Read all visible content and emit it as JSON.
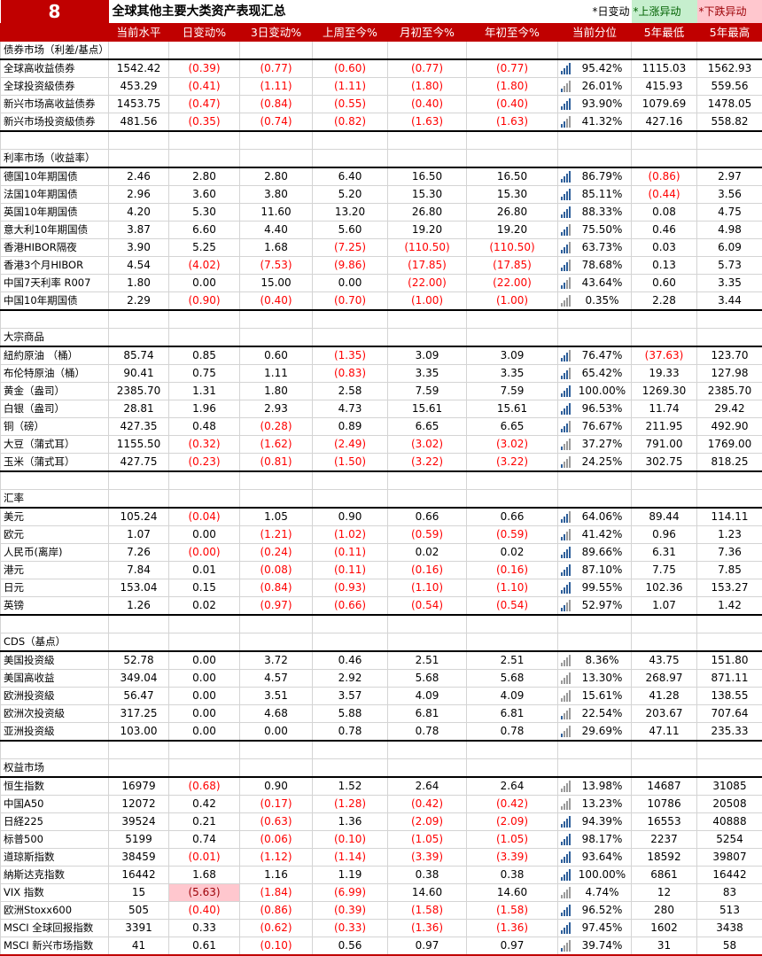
{
  "title": {
    "number": "8",
    "text": "全球其他主要大类资产表现汇总",
    "legend_label": "*日变动",
    "legend_up": "*上涨异动",
    "legend_down": "*下跌异动"
  },
  "colors": {
    "brand": "#c00000",
    "negative": "#ff0000",
    "up_bg": "#c6efce",
    "down_bg": "#ffc7ce",
    "bar_on": "#2e5f9a"
  },
  "columns": [
    "",
    "当前水平",
    "日变动%",
    "3日变动%",
    "上周至今%",
    "月初至今%",
    "年初至今%",
    "当前分位",
    "5年最低",
    "5年最高"
  ],
  "sections": [
    {
      "title": "债券市场（利差/基点）",
      "rows": [
        [
          "全球高收益债券",
          "1542.42",
          "(0.39)",
          "(0.77)",
          "(0.60)",
          "(0.77)",
          "(0.77)",
          "95.42%",
          "1115.03",
          "1562.93"
        ],
        [
          "全球投资級债券",
          "453.29",
          "(0.41)",
          "(1.11)",
          "(1.11)",
          "(1.80)",
          "(1.80)",
          "26.01%",
          "415.93",
          "559.56"
        ],
        [
          "新兴市场高收益债券",
          "1453.75",
          "(0.47)",
          "(0.84)",
          "(0.55)",
          "(0.40)",
          "(0.40)",
          "93.90%",
          "1079.69",
          "1478.05"
        ],
        [
          "新兴市场投资級债券",
          "481.56",
          "(0.35)",
          "(0.74)",
          "(0.82)",
          "(1.63)",
          "(1.63)",
          "41.32%",
          "427.16",
          "558.82"
        ]
      ]
    },
    {
      "title": "利率市场（收益率）",
      "rows": [
        [
          "德国10年期国债",
          "2.46",
          "2.80",
          "2.80",
          "6.40",
          "16.50",
          "16.50",
          "86.79%",
          "(0.86)",
          "2.97"
        ],
        [
          "法国10年期国债",
          "2.96",
          "3.60",
          "3.80",
          "5.20",
          "15.30",
          "15.30",
          "85.11%",
          "(0.44)",
          "3.56"
        ],
        [
          "英国10年期国债",
          "4.20",
          "5.30",
          "11.60",
          "13.20",
          "26.80",
          "26.80",
          "88.33%",
          "0.08",
          "4.75"
        ],
        [
          "意大利10年期国债",
          "3.87",
          "6.60",
          "4.40",
          "5.60",
          "19.20",
          "19.20",
          "75.50%",
          "0.46",
          "4.98"
        ],
        [
          "香港HIBOR隔夜",
          "3.90",
          "5.25",
          "1.68",
          "(7.25)",
          "(110.50)",
          "(110.50)",
          "63.73%",
          "0.03",
          "6.09"
        ],
        [
          "香港3个月HIBOR",
          "4.54",
          "(4.02)",
          "(7.53)",
          "(9.86)",
          "(17.85)",
          "(17.85)",
          "78.68%",
          "0.13",
          "5.73"
        ],
        [
          "中国7天利率 R007",
          "1.80",
          "0.00",
          "15.00",
          "0.00",
          "(22.00)",
          "(22.00)",
          "43.64%",
          "0.60",
          "3.35"
        ],
        [
          "中国10年期国债",
          "2.29",
          "(0.90)",
          "(0.40)",
          "(0.70)",
          "(1.00)",
          "(1.00)",
          "0.35%",
          "2.28",
          "3.44"
        ]
      ]
    },
    {
      "title": "大宗商品",
      "rows": [
        [
          "紐約原油 （桶）",
          "85.74",
          "0.85",
          "0.60",
          "(1.35)",
          "3.09",
          "3.09",
          "76.47%",
          "(37.63)",
          "123.70"
        ],
        [
          "布伦特原油（桶）",
          "90.41",
          "0.75",
          "1.11",
          "(0.83)",
          "3.35",
          "3.35",
          "65.42%",
          "19.33",
          "127.98"
        ],
        [
          "黄金（盎司）",
          "2385.70",
          "1.31",
          "1.80",
          "2.58",
          "7.59",
          "7.59",
          "100.00%",
          "1269.30",
          "2385.70"
        ],
        [
          "白银（盎司）",
          "28.81",
          "1.96",
          "2.93",
          "4.73",
          "15.61",
          "15.61",
          "96.53%",
          "11.74",
          "29.42"
        ],
        [
          "铜（磅）",
          "427.35",
          "0.48",
          "(0.28)",
          "0.89",
          "6.65",
          "6.65",
          "76.67%",
          "211.95",
          "492.90"
        ],
        [
          "大豆（蒲式耳）",
          "1155.50",
          "(0.32)",
          "(1.62)",
          "(2.49)",
          "(3.02)",
          "(3.02)",
          "37.27%",
          "791.00",
          "1769.00"
        ],
        [
          "玉米（蒲式耳）",
          "427.75",
          "(0.23)",
          "(0.81)",
          "(1.50)",
          "(3.22)",
          "(3.22)",
          "24.25%",
          "302.75",
          "818.25"
        ]
      ]
    },
    {
      "title": "汇率",
      "rows": [
        [
          "美元",
          "105.24",
          "(0.04)",
          "1.05",
          "0.90",
          "0.66",
          "0.66",
          "64.06%",
          "89.44",
          "114.11"
        ],
        [
          "欧元",
          "1.07",
          "0.00",
          "(1.21)",
          "(1.02)",
          "(0.59)",
          "(0.59)",
          "41.42%",
          "0.96",
          "1.23"
        ],
        [
          "人民币(离岸)",
          "7.26",
          "(0.00)",
          "(0.24)",
          "(0.11)",
          "0.02",
          "0.02",
          "89.66%",
          "6.31",
          "7.36"
        ],
        [
          "港元",
          "7.84",
          "0.01",
          "(0.08)",
          "(0.11)",
          "(0.16)",
          "(0.16)",
          "87.10%",
          "7.75",
          "7.85"
        ],
        [
          "日元",
          "153.04",
          "0.15",
          "(0.84)",
          "(0.93)",
          "(1.10)",
          "(1.10)",
          "99.55%",
          "102.36",
          "153.27"
        ],
        [
          "英镑",
          "1.26",
          "0.02",
          "(0.97)",
          "(0.66)",
          "(0.54)",
          "(0.54)",
          "52.97%",
          "1.07",
          "1.42"
        ]
      ]
    },
    {
      "title": "CDS（基点）",
      "rows": [
        [
          "美国投资級",
          "52.78",
          "0.00",
          "3.72",
          "0.46",
          "2.51",
          "2.51",
          "8.36%",
          "43.75",
          "151.80"
        ],
        [
          "美国高收益",
          "349.04",
          "0.00",
          "4.57",
          "2.92",
          "5.68",
          "5.68",
          "13.30%",
          "268.97",
          "871.11"
        ],
        [
          "欧洲投资級",
          "56.47",
          "0.00",
          "3.51",
          "3.57",
          "4.09",
          "4.09",
          "15.61%",
          "41.28",
          "138.55"
        ],
        [
          "欧洲次投资級",
          "317.25",
          "0.00",
          "4.68",
          "5.88",
          "6.81",
          "6.81",
          "22.54%",
          "203.67",
          "707.64"
        ],
        [
          "亚洲投资級",
          "103.00",
          "0.00",
          "0.00",
          "0.78",
          "0.78",
          "0.78",
          "29.69%",
          "47.11",
          "235.33"
        ]
      ]
    },
    {
      "title": "权益市场",
      "rows": [
        [
          "恒生指数",
          "16979",
          "(0.68)",
          "0.90",
          "1.52",
          "2.64",
          "2.64",
          "13.98%",
          "14687",
          "31085"
        ],
        [
          "中国A50",
          "12072",
          "0.42",
          "(0.17)",
          "(1.28)",
          "(0.42)",
          "(0.42)",
          "13.23%",
          "10786",
          "20508"
        ],
        [
          "日経225",
          "39524",
          "0.21",
          "(0.63)",
          "1.36",
          "(2.09)",
          "(2.09)",
          "94.39%",
          "16553",
          "40888"
        ],
        [
          "标普500",
          "5199",
          "0.74",
          "(0.06)",
          "(0.10)",
          "(1.05)",
          "(1.05)",
          "98.17%",
          "2237",
          "5254"
        ],
        [
          "道琼斯指数",
          "38459",
          "(0.01)",
          "(1.12)",
          "(1.14)",
          "(3.39)",
          "(3.39)",
          "93.64%",
          "18592",
          "39807"
        ],
        [
          "納斯达克指数",
          "16442",
          "1.68",
          "1.16",
          "1.19",
          "0.38",
          "0.38",
          "100.00%",
          "6861",
          "16442"
        ],
        [
          "VIX 指数",
          "15",
          "(5.63)",
          "(1.84)",
          "(6.99)",
          "14.60",
          "14.60",
          "4.74%",
          "12",
          "83"
        ],
        [
          "欧洲Stoxx600",
          "505",
          "(0.40)",
          "(0.86)",
          "(0.39)",
          "(1.58)",
          "(1.58)",
          "96.52%",
          "280",
          "513"
        ],
        [
          "MSCI 全球回报指数",
          "3391",
          "0.33",
          "(0.62)",
          "(0.33)",
          "(1.36)",
          "(1.36)",
          "97.45%",
          "1602",
          "3438"
        ],
        [
          "MSCI 新兴市场指数",
          "41",
          "0.61",
          "(0.10)",
          "0.56",
          "0.97",
          "0.97",
          "39.74%",
          "31",
          "58"
        ]
      ]
    }
  ],
  "highlights": [
    {
      "section": 5,
      "row": 6,
      "col": 2,
      "type": "down"
    }
  ]
}
